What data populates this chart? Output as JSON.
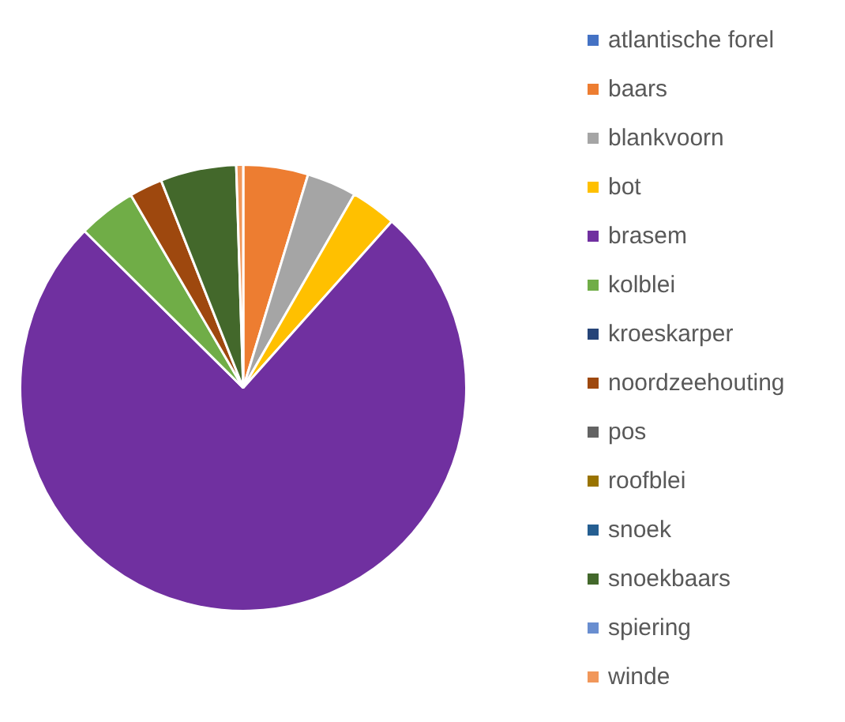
{
  "chart_data": {
    "type": "pie",
    "legend": "right",
    "categories": [
      "atlantische forel",
      "baars",
      "blankvoorn",
      "bot",
      "brasem",
      "kolblei",
      "kroeskarper",
      "noordzeehouting",
      "pos",
      "roofblei",
      "snoek",
      "snoekbaars",
      "spiering",
      "winde"
    ],
    "values": [
      0,
      4.7,
      3.6,
      3.3,
      75.8,
      4.2,
      0,
      2.4,
      0,
      0,
      0,
      5.5,
      0,
      0.5
    ],
    "colors": [
      "#4472c4",
      "#ed7d31",
      "#a5a5a5",
      "#ffc000",
      "#7030a0",
      "#70ad47",
      "#264478",
      "#9e480e",
      "#636363",
      "#997300",
      "#255e91",
      "#43682b",
      "#698ed0",
      "#f1975a"
    ]
  }
}
